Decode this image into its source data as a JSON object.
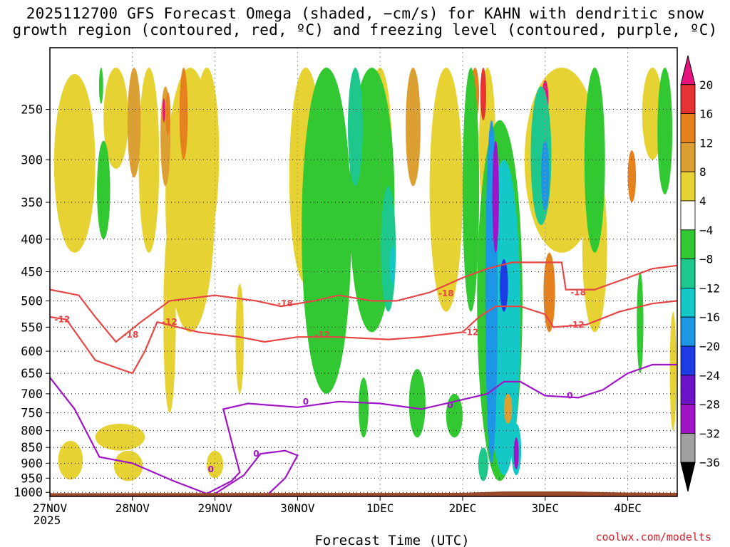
{
  "title": {
    "line1": "2025112700 GFS Forecast Omega (shaded, −cm/s) for KAHN with dendritic snow",
    "line2": "growth region (contoured, red, ºC) and freezing level (contoured, purple, ºC)"
  },
  "credit": "coolwx.com/modelts",
  "chart_data": {
    "type": "heatmap",
    "title": "2025112700 GFS Forecast Omega (shaded, −cm/s) for KAHN with dendritic snow growth region (contoured, red, ºC) and freezing level (contoured, purple, ºC)",
    "xlabel": "Forecast Time (UTC)",
    "ylabel": "",
    "x_ticks": [
      {
        "t": 0,
        "label": "27NOV",
        "sub": "2025"
      },
      {
        "t": 1,
        "label": "28NOV"
      },
      {
        "t": 2,
        "label": "29NOV"
      },
      {
        "t": 3,
        "label": "30NOV"
      },
      {
        "t": 4,
        "label": "1DEC"
      },
      {
        "t": 5,
        "label": "2DEC"
      },
      {
        "t": 6,
        "label": "3DEC"
      },
      {
        "t": 7,
        "label": "4DEC"
      }
    ],
    "xlim": [
      0,
      7.6
    ],
    "y_ticks": [
      250,
      300,
      350,
      400,
      450,
      500,
      550,
      600,
      650,
      700,
      750,
      800,
      850,
      900,
      950,
      1000
    ],
    "ylim": [
      200,
      1015
    ],
    "y_scale": "log-pressure",
    "grid": true,
    "colorbar": {
      "labels": [
        "20",
        "16",
        "12",
        "8",
        "4",
        "−4",
        "−8",
        "−12",
        "−16",
        "−20",
        "−24",
        "−28",
        "−32",
        "−36"
      ],
      "colors": [
        "#e6147f",
        "#e63232",
        "#e6821e",
        "#dca032",
        "#e6d232",
        "#ffffff",
        "#32c832",
        "#1ec88c",
        "#14c8c8",
        "#1e96e6",
        "#1e3ce6",
        "#6e14c8",
        "#a014c8",
        "#a0a0a0",
        "#000000"
      ]
    },
    "shading_blobs": [
      {
        "t": 1.7,
        "p": 360,
        "w": 0.6,
        "p1": 215,
        "p2": 560,
        "c": "#e6d232"
      },
      {
        "t": 0.3,
        "p": 300,
        "w": 0.5,
        "p1": 220,
        "p2": 420,
        "c": "#e6d232"
      },
      {
        "t": 1.9,
        "p": 270,
        "w": 0.3,
        "p1": 215,
        "p2": 400,
        "c": "#e6d232"
      },
      {
        "t": 0.8,
        "p": 250,
        "w": 0.3,
        "p1": 215,
        "p2": 310,
        "c": "#e6d232"
      },
      {
        "t": 1.45,
        "p": 520,
        "w": 0.15,
        "p1": 380,
        "p2": 750,
        "c": "#e6d232"
      },
      {
        "t": 2.3,
        "p": 560,
        "w": 0.1,
        "p1": 470,
        "p2": 700,
        "c": "#e6d232"
      },
      {
        "t": 1.2,
        "p": 300,
        "w": 0.25,
        "p1": 215,
        "p2": 420,
        "c": "#e6d232"
      },
      {
        "t": 1.4,
        "p": 270,
        "w": 0.12,
        "p1": 230,
        "p2": 330,
        "c": "#dca032"
      },
      {
        "t": 1.43,
        "p": 255,
        "w": 0.06,
        "p1": 235,
        "p2": 275,
        "c": "#e6821e"
      },
      {
        "t": 1.38,
        "p": 250,
        "w": 0.03,
        "p1": 240,
        "p2": 262,
        "c": "#e6147f"
      },
      {
        "t": 1.02,
        "p": 250,
        "w": 0.16,
        "p1": 215,
        "p2": 320,
        "c": "#dca032"
      },
      {
        "t": 1.62,
        "p": 240,
        "w": 0.1,
        "p1": 215,
        "p2": 300,
        "c": "#e6821e"
      },
      {
        "t": 0.25,
        "p": 870,
        "w": 0.3,
        "p1": 830,
        "p2": 955,
        "c": "#e6d232"
      },
      {
        "t": 0.85,
        "p": 820,
        "w": 0.6,
        "p1": 780,
        "p2": 860,
        "c": "#e6d232"
      },
      {
        "t": 0.95,
        "p": 890,
        "w": 0.35,
        "p1": 860,
        "p2": 960,
        "c": "#e6d232"
      },
      {
        "t": 2.0,
        "p": 900,
        "w": 0.2,
        "p1": 860,
        "p2": 950,
        "c": "#e6d232"
      },
      {
        "t": 3.1,
        "p": 310,
        "w": 0.4,
        "p1": 215,
        "p2": 470,
        "c": "#e6d232"
      },
      {
        "t": 4.0,
        "p": 300,
        "w": 0.3,
        "p1": 215,
        "p2": 440,
        "c": "#e6d232"
      },
      {
        "t": 4.8,
        "p": 320,
        "w": 0.4,
        "p1": 215,
        "p2": 520,
        "c": "#e6d232"
      },
      {
        "t": 4.4,
        "p": 250,
        "w": 0.18,
        "p1": 215,
        "p2": 330,
        "c": "#dca032"
      },
      {
        "t": 5.3,
        "p": 280,
        "w": 0.2,
        "p1": 215,
        "p2": 380,
        "c": "#e6d232"
      },
      {
        "t": 5.15,
        "p": 230,
        "w": 0.1,
        "p1": 215,
        "p2": 260,
        "c": "#e6821e"
      },
      {
        "t": 6.2,
        "p": 300,
        "w": 0.9,
        "p1": 215,
        "p2": 420,
        "c": "#e6d232"
      },
      {
        "t": 6.6,
        "p": 420,
        "w": 0.3,
        "p1": 300,
        "p2": 560,
        "c": "#e6d232"
      },
      {
        "t": 7.3,
        "p": 240,
        "w": 0.25,
        "p1": 215,
        "p2": 300,
        "c": "#e6d232"
      },
      {
        "t": 7.05,
        "p": 320,
        "w": 0.1,
        "p1": 290,
        "p2": 350,
        "c": "#e6821e"
      },
      {
        "t": 6.05,
        "p": 480,
        "w": 0.08,
        "p1": 450,
        "p2": 530,
        "c": "#e6147f"
      },
      {
        "t": 6.05,
        "p": 470,
        "w": 0.14,
        "p1": 420,
        "p2": 560,
        "c": "#e6821e"
      },
      {
        "t": 6.0,
        "p": 240,
        "w": 0.08,
        "p1": 225,
        "p2": 260,
        "c": "#e6147f"
      },
      {
        "t": 0.65,
        "p": 320,
        "w": 0.16,
        "p1": 280,
        "p2": 400,
        "c": "#32c832"
      },
      {
        "t": 0.62,
        "p": 230,
        "w": 0.05,
        "p1": 215,
        "p2": 245,
        "c": "#32c832"
      },
      {
        "t": 3.35,
        "p": 300,
        "w": 0.6,
        "p1": 215,
        "p2": 700,
        "c": "#32c832"
      },
      {
        "t": 3.9,
        "p": 380,
        "w": 0.55,
        "p1": 215,
        "p2": 560,
        "c": "#32c832"
      },
      {
        "t": 3.7,
        "p": 250,
        "w": 0.18,
        "p1": 215,
        "p2": 330,
        "c": "#1ec88c"
      },
      {
        "t": 4.1,
        "p": 420,
        "w": 0.18,
        "p1": 330,
        "p2": 520,
        "c": "#1ec88c"
      },
      {
        "t": 4.15,
        "p": 440,
        "w": 0.07,
        "p1": 410,
        "p2": 470,
        "c": "#14c8c8"
      },
      {
        "t": 4.45,
        "p": 720,
        "w": 0.2,
        "p1": 640,
        "p2": 820,
        "c": "#32c832"
      },
      {
        "t": 3.8,
        "p": 740,
        "w": 0.12,
        "p1": 660,
        "p2": 820,
        "c": "#32c832"
      },
      {
        "t": 4.9,
        "p": 760,
        "w": 0.2,
        "p1": 700,
        "p2": 820,
        "c": "#32c832"
      },
      {
        "t": 5.1,
        "p": 350,
        "w": 0.2,
        "p1": 215,
        "p2": 520,
        "c": "#32c832"
      },
      {
        "t": 6.6,
        "p": 300,
        "w": 0.25,
        "p1": 215,
        "p2": 420,
        "c": "#32c832"
      },
      {
        "t": 7.45,
        "p": 280,
        "w": 0.18,
        "p1": 215,
        "p2": 340,
        "c": "#32c832"
      },
      {
        "t": 7.55,
        "p": 660,
        "w": 0.08,
        "p1": 520,
        "p2": 800,
        "c": "#e6d232"
      },
      {
        "t": 7.15,
        "p": 560,
        "w": 0.08,
        "p1": 450,
        "p2": 650,
        "c": "#32c832"
      },
      {
        "t": 5.45,
        "p": 600,
        "w": 0.55,
        "p1": 260,
        "p2": 960,
        "c": "#32c832"
      },
      {
        "t": 5.5,
        "p": 600,
        "w": 0.4,
        "p1": 300,
        "p2": 940,
        "c": "#14c8c8"
      },
      {
        "t": 5.35,
        "p": 460,
        "w": 0.15,
        "p1": 260,
        "p2": 900,
        "c": "#1e96e6"
      },
      {
        "t": 5.4,
        "p": 360,
        "w": 0.08,
        "p1": 280,
        "p2": 420,
        "c": "#a014c8"
      },
      {
        "t": 5.25,
        "p": 230,
        "w": 0.07,
        "p1": 215,
        "p2": 260,
        "c": "#e63232"
      },
      {
        "t": 5.5,
        "p": 480,
        "w": 0.1,
        "p1": 430,
        "p2": 520,
        "c": "#1e3ce6"
      },
      {
        "t": 5.95,
        "p": 300,
        "w": 0.25,
        "p1": 230,
        "p2": 380,
        "c": "#1ec88c"
      },
      {
        "t": 6.0,
        "p": 320,
        "w": 0.1,
        "p1": 280,
        "p2": 360,
        "c": "#1e96e6"
      },
      {
        "t": 5.65,
        "p": 850,
        "w": 0.12,
        "p1": 780,
        "p2": 940,
        "c": "#14c8c8"
      },
      {
        "t": 5.65,
        "p": 860,
        "w": 0.06,
        "p1": 820,
        "p2": 920,
        "c": "#a014c8"
      },
      {
        "t": 5.25,
        "p": 900,
        "w": 0.12,
        "p1": 850,
        "p2": 960,
        "c": "#1ec88c"
      },
      {
        "t": 5.55,
        "p": 740,
        "w": 0.1,
        "p1": 700,
        "p2": 780,
        "c": "#dca032"
      }
    ],
    "series": [
      {
        "color": "#e64646",
        "points": [
          [
            0,
            480
          ],
          [
            0.35,
            490
          ],
          [
            0.55,
            530
          ],
          [
            0.8,
            580
          ],
          [
            1.1,
            540
          ],
          [
            1.45,
            500
          ],
          [
            2.0,
            490
          ],
          [
            2.5,
            500
          ],
          [
            2.8,
            510
          ],
          [
            3.2,
            500
          ],
          [
            3.5,
            490
          ],
          [
            3.9,
            500
          ],
          [
            4.2,
            500
          ],
          [
            4.6,
            485
          ],
          [
            5.0,
            460
          ],
          [
            5.3,
            445
          ],
          [
            5.6,
            435
          ],
          [
            6.0,
            435
          ],
          [
            6.2,
            435
          ],
          [
            6.25,
            480
          ],
          [
            6.6,
            480
          ],
          [
            7.0,
            460
          ],
          [
            7.3,
            445
          ],
          [
            7.6,
            440
          ]
        ],
        "labels": [
          {
            "t": 0.98,
            "p": 565,
            "text": "-18"
          },
          {
            "t": 2.85,
            "p": 505,
            "text": "-18"
          },
          {
            "t": 4.8,
            "p": 487,
            "text": "-18"
          },
          {
            "t": 6.4,
            "p": 485,
            "text": "-18"
          }
        ]
      },
      {
        "color": "#e64646",
        "points": [
          [
            0,
            530
          ],
          [
            0.2,
            535
          ],
          [
            0.55,
            620
          ],
          [
            0.85,
            640
          ],
          [
            1.0,
            650
          ],
          [
            1.15,
            600
          ],
          [
            1.3,
            540
          ],
          [
            1.8,
            560
          ],
          [
            2.3,
            570
          ],
          [
            2.6,
            580
          ],
          [
            3.0,
            570
          ],
          [
            3.5,
            570
          ],
          [
            4.1,
            575
          ],
          [
            4.5,
            570
          ],
          [
            5.0,
            560
          ],
          [
            5.2,
            530
          ],
          [
            5.4,
            510
          ],
          [
            5.7,
            510
          ],
          [
            6.0,
            525
          ],
          [
            6.1,
            550
          ],
          [
            6.5,
            545
          ],
          [
            6.9,
            520
          ],
          [
            7.3,
            505
          ],
          [
            7.6,
            500
          ]
        ],
        "labels": [
          {
            "t": 0.15,
            "p": 535,
            "text": "-12"
          },
          {
            "t": 1.45,
            "p": 540,
            "text": "-12"
          },
          {
            "t": 3.3,
            "p": 565,
            "text": "-12"
          },
          {
            "t": 5.1,
            "p": 560,
            "text": "-12"
          },
          {
            "t": 6.38,
            "p": 545,
            "text": "-12"
          }
        ]
      }
    ],
    "series_freezing": [
      {
        "color": "#a014c8",
        "points": [
          [
            0,
            660
          ],
          [
            0.3,
            740
          ],
          [
            0.6,
            880
          ],
          [
            1.0,
            900
          ],
          [
            1.5,
            960
          ],
          [
            1.9,
            1005
          ],
          [
            2.2,
            960
          ],
          [
            2.3,
            930
          ],
          [
            2.2,
            830
          ],
          [
            2.1,
            740
          ],
          [
            2.4,
            725
          ],
          [
            3.0,
            735
          ],
          [
            3.5,
            720
          ],
          [
            4.0,
            725
          ],
          [
            4.5,
            740
          ],
          [
            5.0,
            715
          ],
          [
            5.3,
            700
          ],
          [
            5.5,
            670
          ],
          [
            5.7,
            670
          ],
          [
            6.0,
            705
          ],
          [
            6.4,
            710
          ],
          [
            6.7,
            690
          ],
          [
            7.0,
            650
          ],
          [
            7.3,
            630
          ],
          [
            7.6,
            630
          ]
        ],
        "labels": [
          {
            "t": 1.95,
            "p": 920,
            "text": "0"
          },
          {
            "t": 3.1,
            "p": 720,
            "text": "0"
          },
          {
            "t": 4.85,
            "p": 730,
            "text": "0"
          },
          {
            "t": 6.3,
            "p": 705,
            "text": "0"
          }
        ]
      },
      {
        "color": "#a014c8",
        "points": [
          [
            2.0,
            1005
          ],
          [
            2.35,
            940
          ],
          [
            2.55,
            870
          ],
          [
            2.85,
            860
          ],
          [
            3.0,
            875
          ],
          [
            2.85,
            950
          ],
          [
            2.65,
            1005
          ]
        ],
        "labels": [
          {
            "t": 2.5,
            "p": 870,
            "text": "0"
          }
        ]
      }
    ]
  }
}
